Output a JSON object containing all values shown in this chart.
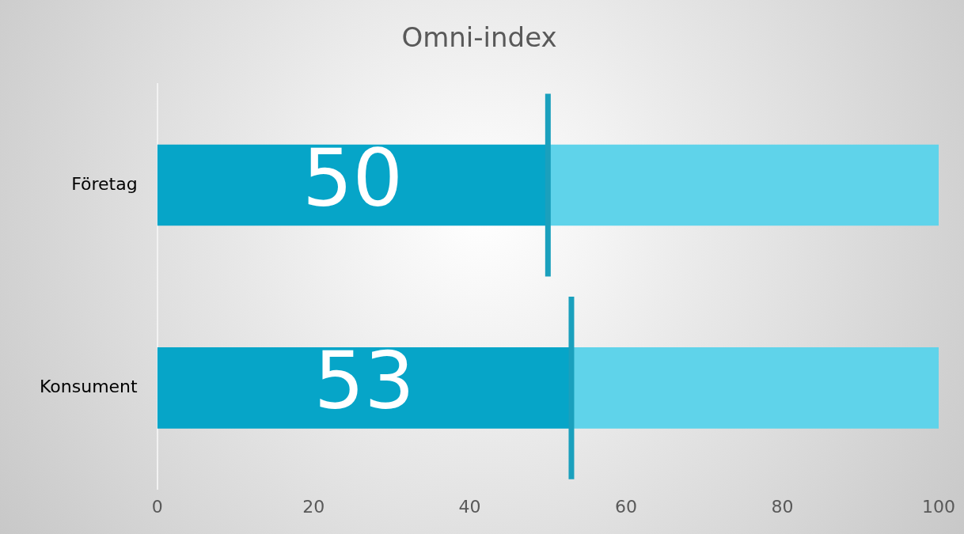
{
  "chart_data": {
    "type": "bar",
    "title": "Omni-index",
    "orientation": "horizontal",
    "stacked": true,
    "categories": [
      "Företag",
      "Konsument"
    ],
    "series": [
      {
        "color": "#06a5c8",
        "values": [
          50,
          53
        ],
        "value_labels": [
          "50",
          "53"
        ]
      },
      {
        "color": "#5fd3ea",
        "values": [
          50,
          47
        ]
      }
    ],
    "ref_lines": [
      {
        "axis": "x",
        "value": 50,
        "color": "#1aa0bd"
      },
      {
        "axis": "x",
        "value": 53,
        "color": "#1aa0bd"
      }
    ],
    "xlim": [
      0,
      100
    ],
    "xticks": [
      0,
      20,
      40,
      60,
      80,
      100
    ],
    "grid": false,
    "legend": false
  }
}
